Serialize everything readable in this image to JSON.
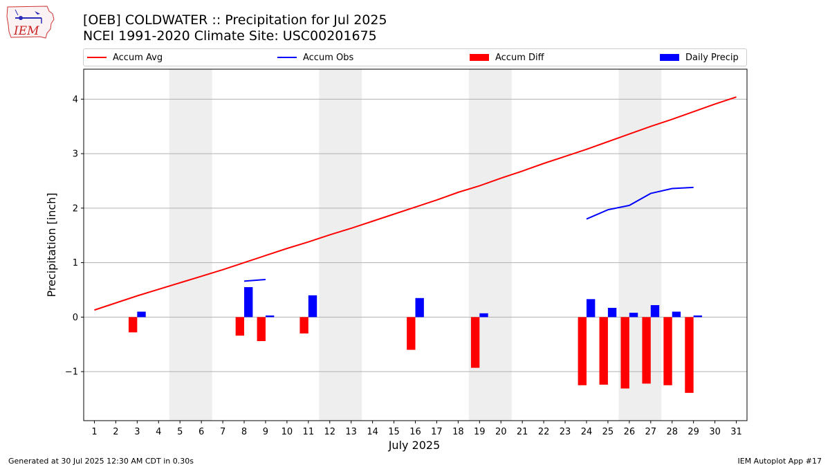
{
  "header": {
    "title": "[OEB] COLDWATER :: Precipitation for Jul 2025",
    "subtitle": "NCEI 1991-2020 Climate Site: USC00201675",
    "logo_text": "IEM"
  },
  "footer": {
    "left": "Generated at 30 Jul 2025 12:30 AM CDT in 0.30s",
    "right": "IEM Autoplot App #17"
  },
  "legend": {
    "accum_avg": "Accum Avg",
    "accum_obs": "Accum Obs",
    "accum_diff": "Accum Diff",
    "daily_precip": "Daily Precip"
  },
  "colors": {
    "accum_avg": "#ff0000",
    "accum_obs": "#0000ff",
    "accum_diff": "#ff0000",
    "daily_precip": "#0000ff",
    "weekend_shade": "#eeeeee",
    "grid": "#b0b0b0"
  },
  "chart_data": {
    "type": "bar",
    "xlabel": "July 2025",
    "ylabel": "Precipitation [inch]",
    "xlim": [
      0.5,
      31.5
    ],
    "ylim": [
      -1.9,
      4.55
    ],
    "yticks": [
      -1,
      0,
      1,
      2,
      3,
      4
    ],
    "ytick_labels": [
      "−1",
      "0",
      "1",
      "2",
      "3",
      "4"
    ],
    "xticks": [
      1,
      2,
      3,
      4,
      5,
      6,
      7,
      8,
      9,
      10,
      11,
      12,
      13,
      14,
      15,
      16,
      17,
      18,
      19,
      20,
      21,
      22,
      23,
      24,
      25,
      26,
      27,
      28,
      29,
      30,
      31
    ],
    "grid": "horizontal",
    "legend_position": "top",
    "weekend_spans": [
      [
        5,
        6
      ],
      [
        12,
        13
      ],
      [
        19,
        20
      ],
      [
        26,
        27
      ]
    ],
    "accum_avg": {
      "days": [
        1,
        2,
        3,
        4,
        5,
        6,
        7,
        8,
        9,
        10,
        11,
        12,
        13,
        14,
        15,
        16,
        17,
        18,
        19,
        20,
        21,
        22,
        23,
        24,
        25,
        26,
        27,
        28,
        29,
        30,
        31
      ],
      "values": [
        0.13,
        0.26,
        0.39,
        0.51,
        0.63,
        0.75,
        0.87,
        1.0,
        1.13,
        1.26,
        1.38,
        1.51,
        1.63,
        1.76,
        1.89,
        2.02,
        2.15,
        2.29,
        2.41,
        2.55,
        2.68,
        2.82,
        2.95,
        3.08,
        3.22,
        3.36,
        3.5,
        3.63,
        3.77,
        3.91,
        4.04
      ]
    },
    "accum_obs_segments": [
      {
        "days": [
          8,
          9
        ],
        "values": [
          0.66,
          0.69
        ]
      },
      {
        "days": [
          24,
          25,
          26,
          27,
          28,
          29
        ],
        "values": [
          1.8,
          1.97,
          2.05,
          2.27,
          2.36,
          2.38
        ]
      }
    ],
    "accum_diff": {
      "days": [
        3,
        8,
        9,
        11,
        16,
        19,
        24,
        25,
        26,
        27,
        28,
        29
      ],
      "values": [
        -0.28,
        -0.34,
        -0.44,
        -0.3,
        -0.6,
        -0.93,
        -1.25,
        -1.24,
        -1.31,
        -1.22,
        -1.25,
        -1.39
      ]
    },
    "daily_precip": {
      "days": [
        3,
        8,
        9,
        11,
        16,
        19,
        24,
        25,
        26,
        27,
        28,
        29
      ],
      "values": [
        0.1,
        0.55,
        0.03,
        0.4,
        0.35,
        0.07,
        0.33,
        0.17,
        0.08,
        0.22,
        0.1,
        0.03
      ]
    }
  }
}
